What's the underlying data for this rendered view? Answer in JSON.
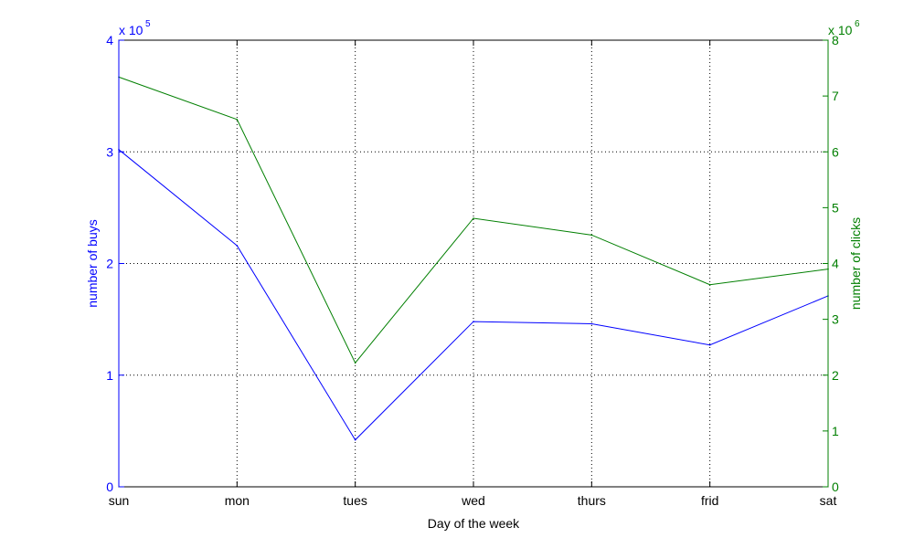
{
  "chart_data": {
    "type": "line",
    "xlabel": "Day of the week",
    "categories": [
      "sun",
      "mon",
      "tues",
      "wed",
      "thurs",
      "frid",
      "sat"
    ],
    "grid": true,
    "left_axis": {
      "label": "number of buys",
      "multiplier_label": "x 10",
      "multiplier_exponent": "5",
      "ylim": [
        0,
        4
      ],
      "ticks": [
        "0",
        "1",
        "2",
        "3",
        "4"
      ],
      "color": "#0000ff"
    },
    "right_axis": {
      "label": "number of clicks",
      "multiplier_label": "x 10",
      "multiplier_exponent": "6",
      "ylim": [
        0,
        8
      ],
      "ticks": [
        "0",
        "1",
        "2",
        "3",
        "4",
        "5",
        "6",
        "7",
        "8"
      ],
      "color": "#007f00"
    },
    "series": [
      {
        "axis": "left",
        "color": "#0000ff",
        "values": [
          3.02,
          2.16,
          0.42,
          1.48,
          1.46,
          1.27,
          1.71
        ]
      },
      {
        "axis": "right",
        "color": "#007f00",
        "values": [
          7.34,
          6.58,
          2.22,
          4.81,
          4.51,
          3.62,
          3.9
        ]
      }
    ]
  }
}
